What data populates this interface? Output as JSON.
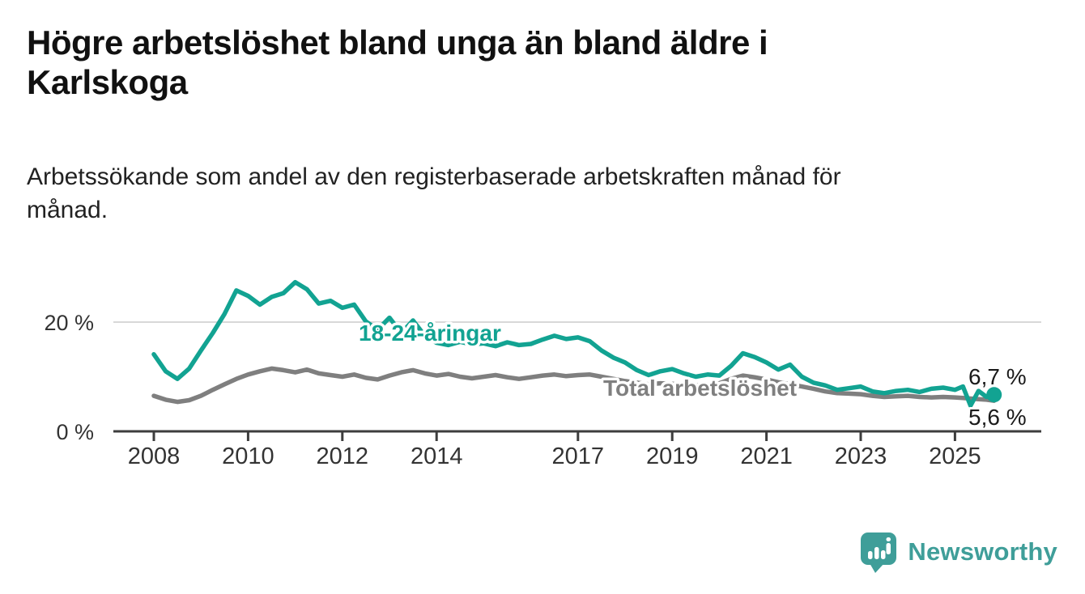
{
  "title": "Högre arbetslöshet bland unga än bland äldre i Karlskoga",
  "subtitle": "Arbetssökande som andel av den registerbaserade arbetskraften månad för månad.",
  "colors": {
    "accent_teal": "#12a392",
    "series_gray": "#7f7f7f",
    "axis": "#3d3d3d",
    "grid": "#d8d8d8",
    "tick_text": "#333333",
    "value_text": "#1a1a1a",
    "logo_teal": "#3f9e99"
  },
  "chart_data": {
    "type": "line",
    "x_unit": "year (monthly series)",
    "y_unit": "%",
    "x_axis": {
      "ticks": [
        2008,
        2010,
        2012,
        2014,
        2017,
        2019,
        2021,
        2023,
        2025
      ],
      "range": [
        2008,
        2025.83
      ]
    },
    "y_axis": {
      "ticks": [
        {
          "value": 0,
          "label": "0 %"
        },
        {
          "value": 20,
          "label": "20 %"
        }
      ],
      "range": [
        0,
        29
      ]
    },
    "grid": "horizontal line at 20% only",
    "legend": "inline labels on lines",
    "series": [
      {
        "name": "18-24-åringar",
        "color": "#12a392",
        "end_label": "6,7 %",
        "end_dot": true,
        "x": [
          2008.0,
          2008.25,
          2008.5,
          2008.75,
          2009.0,
          2009.25,
          2009.5,
          2009.75,
          2010.0,
          2010.25,
          2010.5,
          2010.75,
          2011.0,
          2011.25,
          2011.5,
          2011.75,
          2012.0,
          2012.25,
          2012.5,
          2012.75,
          2013.0,
          2013.25,
          2013.5,
          2013.75,
          2014.0,
          2014.25,
          2014.5,
          2014.75,
          2015.0,
          2015.25,
          2015.5,
          2015.75,
          2016.0,
          2016.25,
          2016.5,
          2016.75,
          2017.0,
          2017.25,
          2017.5,
          2017.75,
          2018.0,
          2018.25,
          2018.5,
          2018.75,
          2019.0,
          2019.25,
          2019.5,
          2019.75,
          2020.0,
          2020.25,
          2020.5,
          2020.75,
          2021.0,
          2021.25,
          2021.5,
          2021.75,
          2022.0,
          2022.25,
          2022.5,
          2022.75,
          2023.0,
          2023.25,
          2023.5,
          2023.75,
          2024.0,
          2024.25,
          2024.5,
          2024.75,
          2025.0,
          2025.17,
          2025.33,
          2025.5,
          2025.67,
          2025.83
        ],
        "y": [
          14.1,
          11.0,
          9.6,
          11.5,
          14.8,
          18.0,
          21.5,
          25.8,
          24.8,
          23.2,
          24.6,
          25.3,
          27.3,
          26.0,
          23.4,
          23.9,
          22.6,
          23.2,
          20.1,
          18.6,
          20.8,
          18.0,
          20.3,
          17.5,
          16.2,
          15.8,
          16.4,
          15.9,
          16.1,
          15.6,
          16.3,
          15.8,
          16.0,
          16.8,
          17.5,
          16.9,
          17.2,
          16.5,
          14.8,
          13.5,
          12.6,
          11.2,
          10.3,
          11.0,
          11.4,
          10.6,
          10.0,
          10.4,
          10.2,
          12.0,
          14.3,
          13.6,
          12.6,
          11.3,
          12.2,
          10.0,
          8.9,
          8.4,
          7.6,
          7.9,
          8.2,
          7.3,
          7.0,
          7.4,
          7.6,
          7.2,
          7.8,
          8.0,
          7.6,
          8.2,
          4.7,
          7.4,
          6.3,
          6.7
        ]
      },
      {
        "name": "Total arbetslöshet",
        "color": "#7f7f7f",
        "end_label": "5,6 %",
        "end_dot": false,
        "x": [
          2008.0,
          2008.25,
          2008.5,
          2008.75,
          2009.0,
          2009.25,
          2009.5,
          2009.75,
          2010.0,
          2010.25,
          2010.5,
          2010.75,
          2011.0,
          2011.25,
          2011.5,
          2011.75,
          2012.0,
          2012.25,
          2012.5,
          2012.75,
          2013.0,
          2013.25,
          2013.5,
          2013.75,
          2014.0,
          2014.25,
          2014.5,
          2014.75,
          2015.0,
          2015.25,
          2015.5,
          2015.75,
          2016.0,
          2016.25,
          2016.5,
          2016.75,
          2017.0,
          2017.25,
          2017.5,
          2017.75,
          2018.0,
          2018.25,
          2018.5,
          2018.75,
          2019.0,
          2019.25,
          2019.5,
          2019.75,
          2020.0,
          2020.25,
          2020.5,
          2020.75,
          2021.0,
          2021.25,
          2021.5,
          2021.75,
          2022.0,
          2022.25,
          2022.5,
          2022.75,
          2023.0,
          2023.25,
          2023.5,
          2023.75,
          2024.0,
          2024.25,
          2024.5,
          2024.75,
          2025.0,
          2025.17,
          2025.33,
          2025.5,
          2025.67,
          2025.83
        ],
        "y": [
          6.5,
          5.8,
          5.4,
          5.7,
          6.5,
          7.6,
          8.6,
          9.6,
          10.4,
          11.0,
          11.5,
          11.2,
          10.8,
          11.3,
          10.6,
          10.3,
          10.0,
          10.4,
          9.8,
          9.5,
          10.2,
          10.8,
          11.2,
          10.6,
          10.2,
          10.5,
          10.0,
          9.7,
          10.0,
          10.3,
          9.9,
          9.6,
          9.9,
          10.2,
          10.4,
          10.1,
          10.3,
          10.4,
          10.0,
          9.6,
          9.2,
          8.9,
          8.6,
          8.8,
          8.7,
          8.5,
          8.4,
          8.6,
          8.8,
          9.6,
          10.2,
          9.9,
          9.5,
          9.0,
          8.6,
          8.2,
          7.8,
          7.3,
          7.0,
          6.9,
          6.8,
          6.5,
          6.3,
          6.4,
          6.5,
          6.3,
          6.2,
          6.3,
          6.2,
          6.1,
          6.0,
          5.9,
          5.8,
          5.6
        ]
      }
    ]
  },
  "footer": {
    "brand": "Newsworthy",
    "logo_icon": "newsworthy-speech-bubble-bar-chart-icon"
  }
}
